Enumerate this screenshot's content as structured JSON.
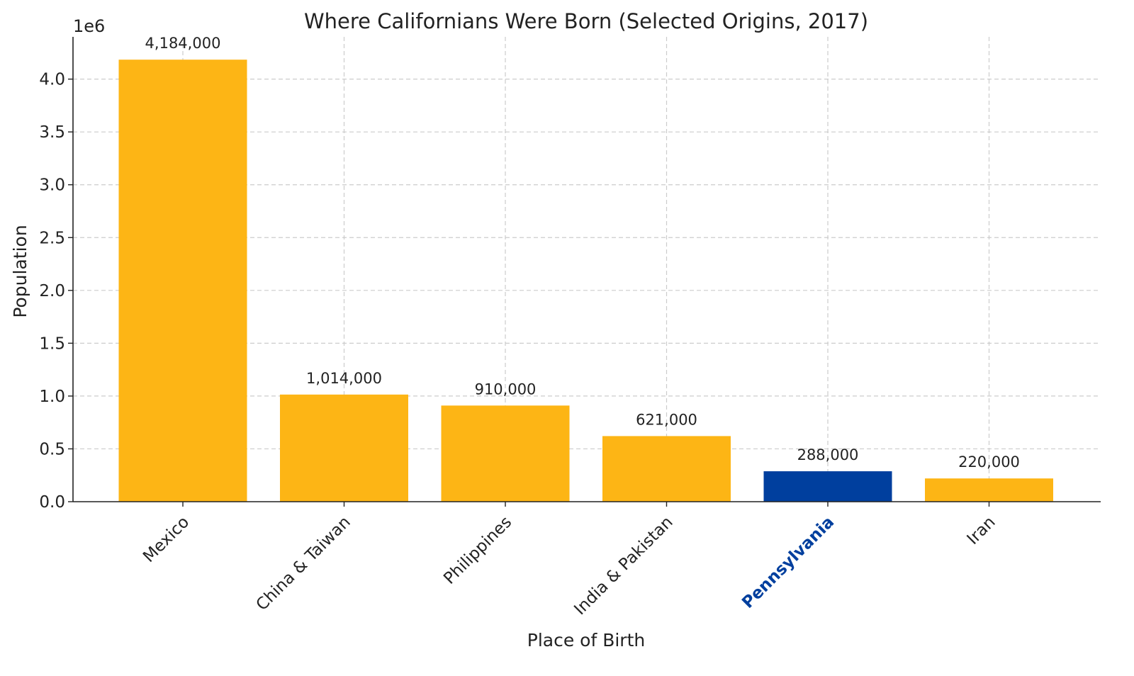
{
  "chart_data": {
    "type": "bar",
    "title": "Where Californians Were Born (Selected Origins, 2017)",
    "xlabel": "Place of Birth",
    "ylabel": "Population",
    "y_offset_label": "1e6",
    "categories": [
      "Mexico",
      "China & Taiwan",
      "Philippines",
      "India & Pakistan",
      "Pennsylvania",
      "Iran"
    ],
    "values": [
      4184000,
      1014000,
      910000,
      621000,
      288000,
      220000
    ],
    "value_labels": [
      "4,184,000",
      "1,014,000",
      "910,000",
      "621,000",
      "288,000",
      "220,000"
    ],
    "highlight_index": 4,
    "ylim": [
      0,
      4400000
    ],
    "y_ticks": [
      0,
      500000,
      1000000,
      1500000,
      2000000,
      2500000,
      3000000,
      3500000,
      4000000
    ],
    "y_tick_labels": [
      "0.0",
      "0.5",
      "1.0",
      "1.5",
      "2.0",
      "2.5",
      "3.0",
      "3.5",
      "4.0"
    ],
    "grid": true,
    "colors": {
      "bar": "#FDB515",
      "highlight": "#003F9E",
      "text": "#222222",
      "grid": "#cccccc"
    }
  }
}
